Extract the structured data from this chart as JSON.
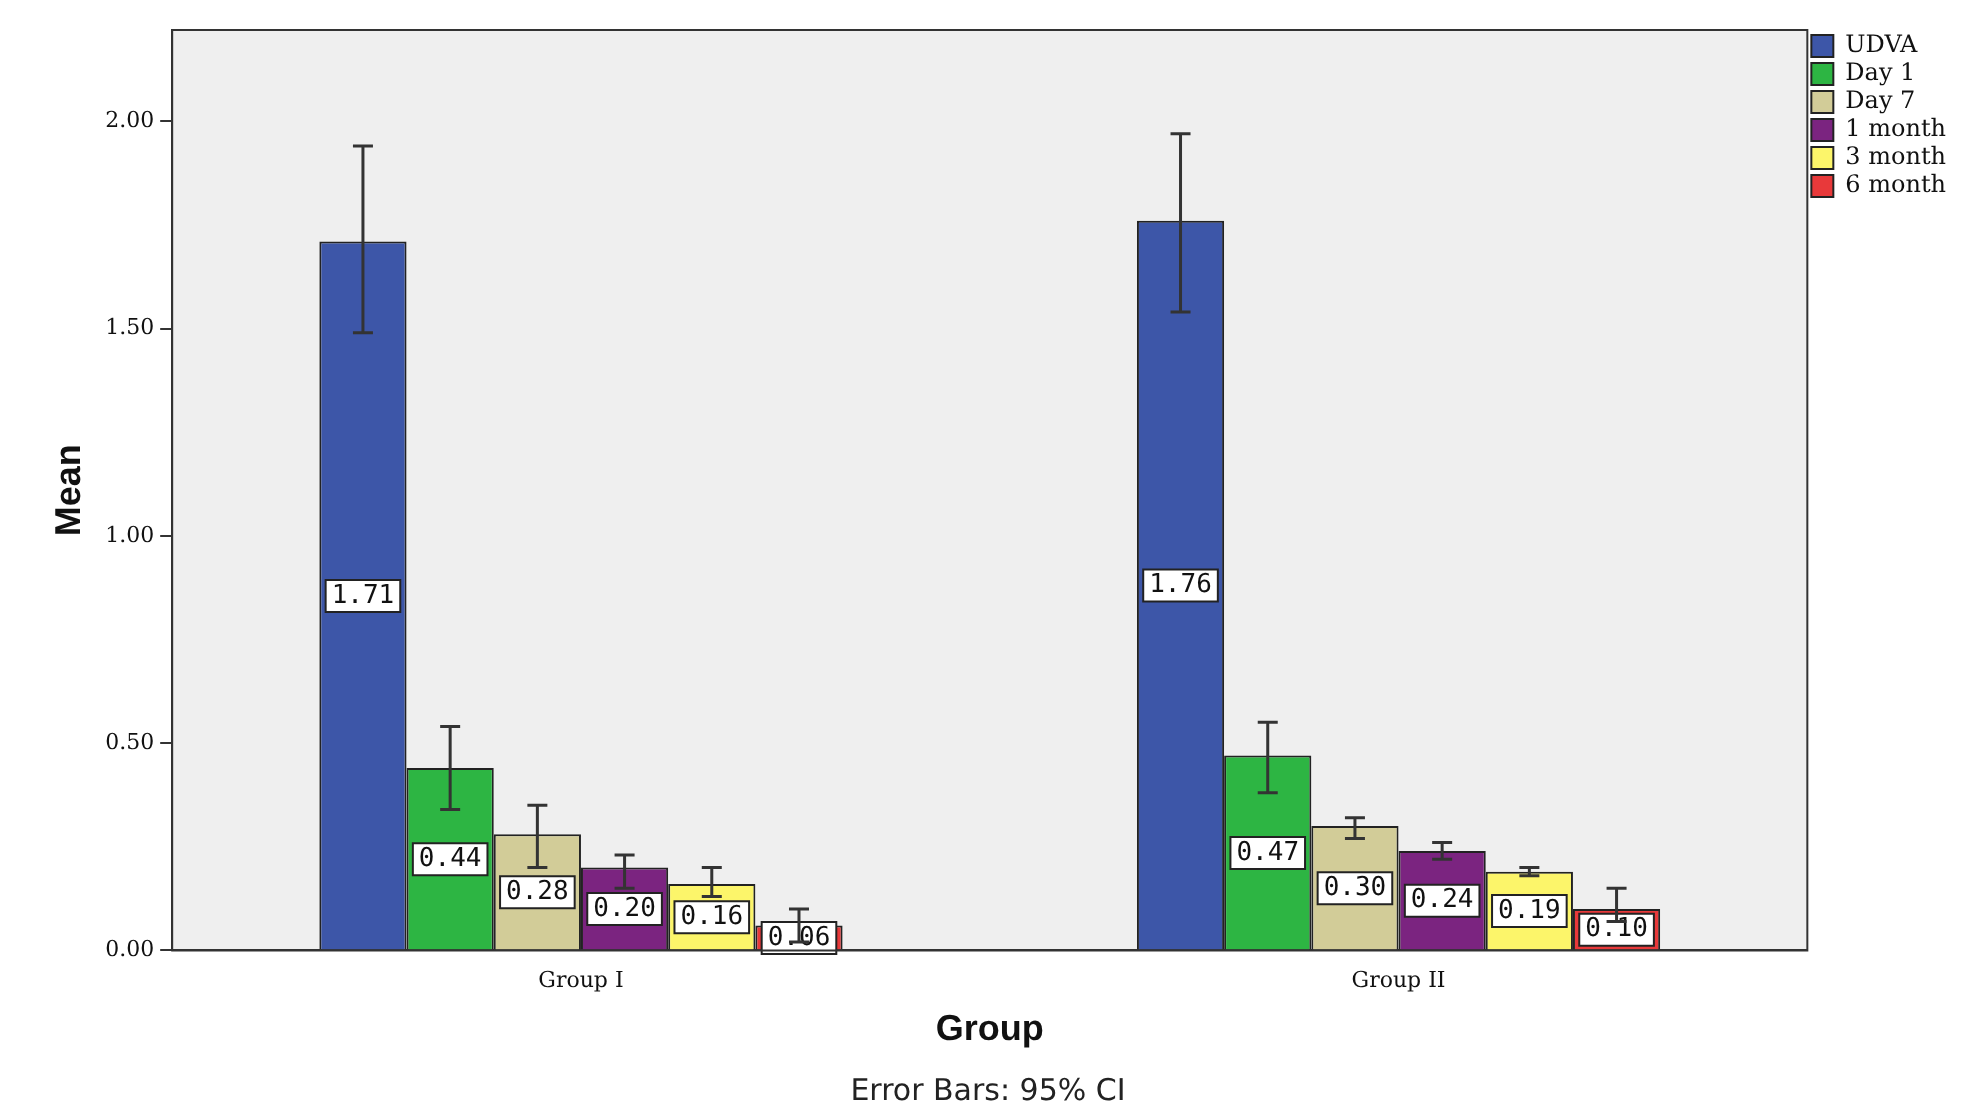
{
  "chart_data": {
    "type": "bar",
    "xlabel": "Group",
    "ylabel": "Mean",
    "categories": [
      "Group I",
      "Group II"
    ],
    "ylim": [
      0,
      2.22
    ],
    "yticks": [
      {
        "value": 0,
        "label": "0.00"
      },
      {
        "value": 0.5,
        "label": "0.50"
      },
      {
        "value": 1,
        "label": "1.00"
      },
      {
        "value": 1.5,
        "label": "1.50"
      },
      {
        "value": 2,
        "label": "2.00"
      }
    ],
    "series": [
      {
        "name": "UDVA",
        "color": "#3d56a8",
        "values": [
          1.71,
          1.76
        ],
        "value_labels": [
          "1.71",
          "1.76"
        ],
        "errors": [
          [
            1.49,
            1.94
          ],
          [
            1.54,
            1.97
          ]
        ]
      },
      {
        "name": "Day 1",
        "color": "#2db543",
        "values": [
          0.44,
          0.47
        ],
        "value_labels": [
          "0.44",
          "0.47"
        ],
        "errors": [
          [
            0.34,
            0.54
          ],
          [
            0.38,
            0.55
          ]
        ]
      },
      {
        "name": "Day 7",
        "color": "#d2cc98",
        "values": [
          0.28,
          0.3
        ],
        "value_labels": [
          "0.28",
          "0.30"
        ],
        "errors": [
          [
            0.2,
            0.35
          ],
          [
            0.27,
            0.32
          ]
        ]
      },
      {
        "name": "1 month",
        "color": "#7b2480",
        "values": [
          0.2,
          0.24
        ],
        "value_labels": [
          "0.20",
          "0.24"
        ],
        "errors": [
          [
            0.15,
            0.23
          ],
          [
            0.22,
            0.26
          ]
        ]
      },
      {
        "name": "3 month",
        "color": "#fcf56a",
        "values": [
          0.16,
          0.19
        ],
        "value_labels": [
          "0.16",
          "0.19"
        ],
        "errors": [
          [
            0.13,
            0.2
          ],
          [
            0.18,
            0.2
          ]
        ]
      },
      {
        "name": "6 month",
        "color": "#e8393a",
        "values": [
          0.06,
          0.1
        ],
        "value_labels": [
          "0.06",
          "0.10"
        ],
        "errors": [
          [
            0.02,
            0.1
          ],
          [
            0.07,
            0.15
          ]
        ]
      }
    ],
    "legend": "top right",
    "grid": false,
    "annotations": [
      "Error Bars: 95% CI"
    ]
  }
}
